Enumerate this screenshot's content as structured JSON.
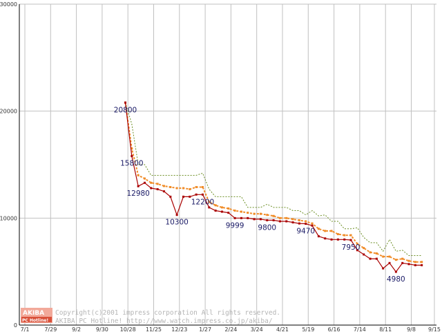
{
  "chart_data": {
    "type": "line",
    "title": "",
    "xlabel": "",
    "ylabel": "",
    "ylim": [
      0,
      30000
    ],
    "y_ticks": [
      0,
      10000,
      20000,
      30000
    ],
    "y_tick_labels": [
      "0",
      "10000",
      "20000",
      "30000"
    ],
    "x_tick_labels": [
      "7/1",
      "7/29",
      "9/2",
      "9/30",
      "10/28",
      "11/25",
      "12/23",
      "1/27",
      "2/24",
      "3/24",
      "4/21",
      "5/19",
      "6/16",
      "7/14",
      "8/11",
      "9/8",
      "9/15"
    ],
    "grid": true,
    "colors": {
      "min_price": "#aa0000",
      "average_price": "#f08c28",
      "max_price": "#6b8e23",
      "grid": "#c0c0c0",
      "logo_box": "#f2a99a",
      "logo_inner": "#d9513a"
    },
    "x": [
      "10/28",
      "11/4",
      "11/11",
      "11/18",
      "11/25",
      "12/2",
      "12/9",
      "12/16",
      "12/23",
      "12/30",
      "1/6",
      "1/13",
      "1/20",
      "1/27",
      "2/3",
      "2/10",
      "2/17",
      "2/24",
      "3/3",
      "3/10",
      "3/17",
      "3/24",
      "3/31",
      "4/7",
      "4/14",
      "4/21",
      "4/28",
      "5/5",
      "5/12",
      "5/19",
      "5/26",
      "6/2",
      "6/9",
      "6/16",
      "6/23",
      "6/30",
      "7/7",
      "7/14",
      "7/21",
      "7/28",
      "8/4",
      "8/11",
      "8/18",
      "8/25",
      "9/1",
      "9/8",
      "9/15"
    ],
    "series": [
      {
        "key": "min_price",
        "values": [
          20800,
          15800,
          12980,
          13300,
          12800,
          12700,
          12500,
          12000,
          10300,
          12000,
          12000,
          12200,
          12200,
          11000,
          10700,
          10600,
          10500,
          9999,
          10000,
          10000,
          9900,
          9900,
          9800,
          9800,
          9700,
          9700,
          9600,
          9500,
          9470,
          9300,
          8300,
          8100,
          8000,
          8000,
          8000,
          7950,
          7000,
          6600,
          6200,
          6200,
          5300,
          5800,
          4980,
          5800,
          5700,
          5600,
          5600
        ]
      },
      {
        "key": "average_price",
        "values": [
          20800,
          16500,
          14000,
          13700,
          13300,
          13200,
          13000,
          12900,
          12800,
          12800,
          12700,
          12900,
          12900,
          11500,
          11200,
          11000,
          10900,
          10700,
          10600,
          10500,
          10400,
          10400,
          10300,
          10200,
          10000,
          10000,
          9900,
          9800,
          9700,
          9500,
          9000,
          8800,
          8800,
          8500,
          8400,
          8400,
          7600,
          7200,
          6800,
          6700,
          6400,
          6400,
          6100,
          6200,
          6000,
          5900,
          5900
        ]
      },
      {
        "key": "max_price",
        "values": [
          20800,
          18800,
          15000,
          15000,
          14000,
          14000,
          14000,
          14000,
          14000,
          14000,
          14000,
          14000,
          14200,
          12700,
          12000,
          12000,
          12000,
          12000,
          12000,
          11000,
          11000,
          11000,
          11300,
          11000,
          11000,
          11000,
          10700,
          10700,
          10300,
          10700,
          10200,
          10300,
          9700,
          9700,
          9000,
          9000,
          9100,
          8200,
          7700,
          7700,
          6900,
          8000,
          6900,
          7000,
          6500,
          6500,
          6500
        ]
      }
    ],
    "data_labels": [
      {
        "x": "10/28",
        "y": 20800,
        "text": "20800"
      },
      {
        "x": "11/4",
        "y": 15800,
        "text": "15800"
      },
      {
        "x": "11/11",
        "y": 12980,
        "text": "12980"
      },
      {
        "x": "12/23",
        "y": 10300,
        "text": "10300"
      },
      {
        "x": "1/20",
        "y": 12200,
        "text": "12200"
      },
      {
        "x": "2/24",
        "y": 9999,
        "text": "9999"
      },
      {
        "x": "3/31",
        "y": 9800,
        "text": "9800"
      },
      {
        "x": "5/12",
        "y": 9470,
        "text": "9470"
      },
      {
        "x": "6/30",
        "y": 7950,
        "text": "7950"
      },
      {
        "x": "8/18",
        "y": 4980,
        "text": "4980"
      }
    ]
  },
  "watermark": {
    "logo_line1": "AKIBA",
    "logo_line2": "PC Hotline!",
    "line1": "Copyright(c)2001 impress corporation All rights reserved.",
    "line2": "AKIBA PC Hotline!  http://www.watch.impress.co.jp/akiba/"
  }
}
